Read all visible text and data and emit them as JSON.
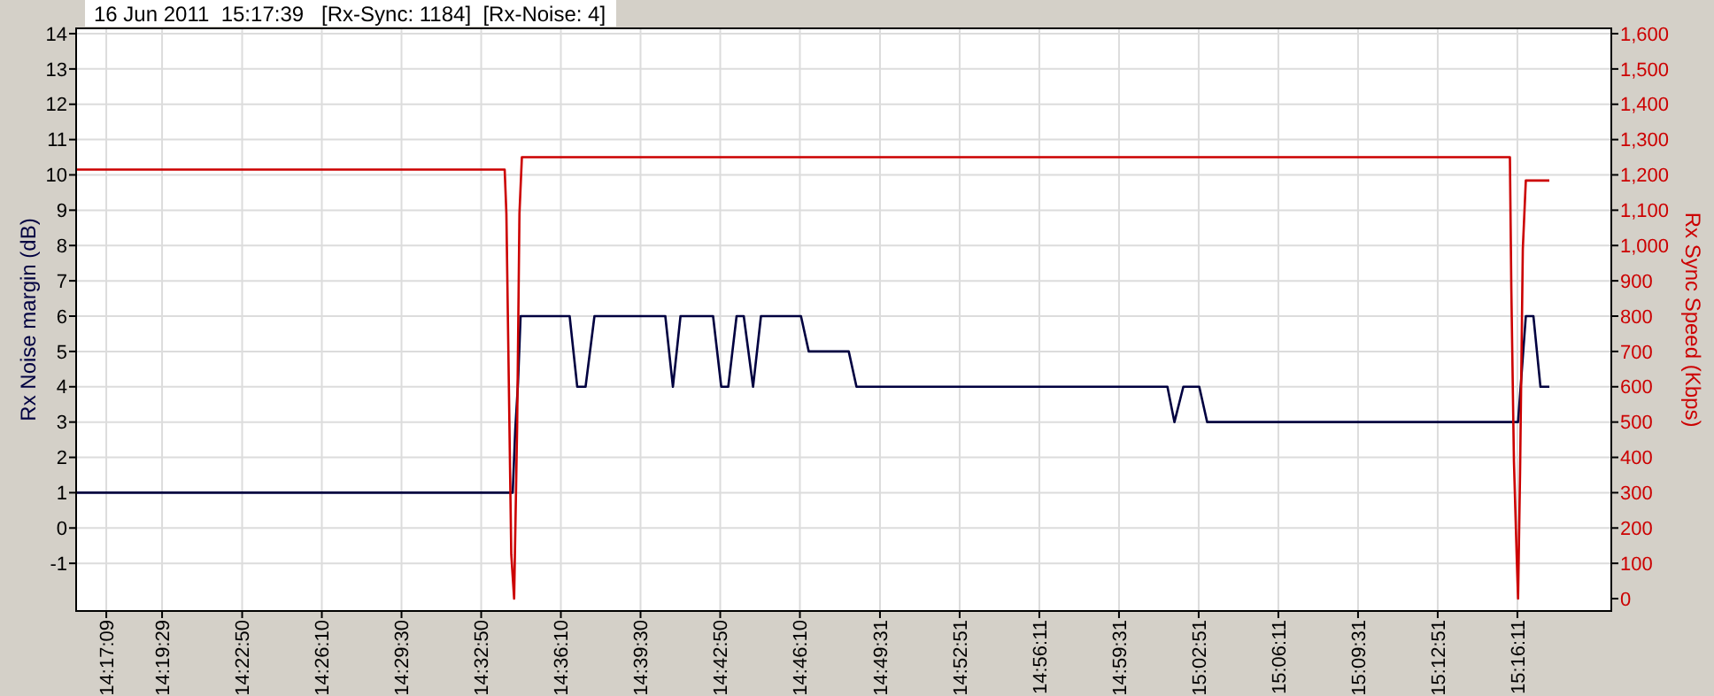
{
  "chart_data": {
    "type": "line",
    "title": "16 Jun 2011  15:17:39   [Rx-Sync: 1184]  [Rx-Noise: 4]",
    "ylabel": "Rx Noise margin (dB)",
    "y2label": "Rx Sync Speed (Kbps)",
    "xlim": [
      14.2648,
      15.3352
    ],
    "ylim": [
      -2.35,
      14.15
    ],
    "y2lim": [
      -35,
      1615
    ],
    "xticks": [
      {
        "value": 14.28583,
        "label": "14:17:09"
      },
      {
        "value": 14.32472,
        "label": "14:19:29"
      },
      {
        "value": 14.38056,
        "label": "14:22:50"
      },
      {
        "value": 14.43611,
        "label": "14:26:10"
      },
      {
        "value": 14.49167,
        "label": "14:29:30"
      },
      {
        "value": 14.54722,
        "label": "14:32:50"
      },
      {
        "value": 14.60278,
        "label": "14:36:10"
      },
      {
        "value": 14.65833,
        "label": "14:39:30"
      },
      {
        "value": 14.71389,
        "label": "14:42:50"
      },
      {
        "value": 14.76944,
        "label": "14:46:10"
      },
      {
        "value": 14.82528,
        "label": "14:49:31"
      },
      {
        "value": 14.88083,
        "label": "14:52:51"
      },
      {
        "value": 14.93639,
        "label": "14:56:11"
      },
      {
        "value": 14.99194,
        "label": "14:59:31"
      },
      {
        "value": 15.0475,
        "label": "15:02:51"
      },
      {
        "value": 15.10306,
        "label": "15:06:11"
      },
      {
        "value": 15.15861,
        "label": "15:09:31"
      },
      {
        "value": 15.21417,
        "label": "15:12:51"
      },
      {
        "value": 15.26972,
        "label": "15:16:11"
      }
    ],
    "yticks": [
      -1,
      0,
      1,
      2,
      3,
      4,
      5,
      6,
      7,
      8,
      9,
      10,
      11,
      12,
      13,
      14
    ],
    "y2ticks": [
      0,
      100,
      200,
      300,
      400,
      500,
      600,
      700,
      800,
      900,
      {
        "value": 1000,
        "label": "1,000"
      },
      {
        "value": 1100,
        "label": "1,100"
      },
      {
        "value": 1200,
        "label": "1,200"
      },
      {
        "value": 1300,
        "label": "1,300"
      },
      {
        "value": 1400,
        "label": "1,400"
      },
      {
        "value": 1500,
        "label": "1,500"
      },
      {
        "value": 1600,
        "label": "1,600"
      }
    ],
    "grid": true,
    "series": [
      {
        "color": "#000040",
        "x": [
          14.2648,
          14.5692,
          14.571,
          14.5729,
          14.5747,
          14.6089,
          14.6142,
          14.62,
          14.6262,
          14.6756,
          14.6809,
          14.6862,
          14.7089,
          14.7146,
          14.7195,
          14.7253,
          14.7303,
          14.7368,
          14.7423,
          14.7702,
          14.7756,
          14.8035,
          14.8089,
          15.0257,
          15.0306,
          15.0368,
          15.0479,
          15.0534,
          15.2702,
          15.2756,
          15.2809,
          15.2858,
          15.292
        ],
        "values": [
          1,
          1,
          2.8,
          4.1,
          6,
          6,
          4,
          4,
          6,
          6,
          4,
          6,
          6,
          4,
          4,
          6,
          6,
          4,
          6,
          6,
          5,
          5,
          4,
          4,
          3,
          4,
          4,
          3,
          3,
          6,
          6,
          4,
          4
        ]
      },
      {
        "color": "#cc0000",
        "axis": "y2",
        "x": [
          14.2648,
          14.5636,
          14.5648,
          14.5665,
          14.5682,
          14.5702,
          14.5723,
          14.5739,
          14.5756,
          15.2645,
          15.2655,
          15.2673,
          15.2692,
          15.2702,
          15.2716,
          15.2735,
          15.2756,
          15.292
        ],
        "values": [
          1215,
          1215,
          1090,
          610,
          125,
          0,
          490,
          1090,
          1250,
          1250,
          875,
          390,
          125,
          0,
          360,
          990,
          1184,
          1184
        ]
      }
    ]
  }
}
